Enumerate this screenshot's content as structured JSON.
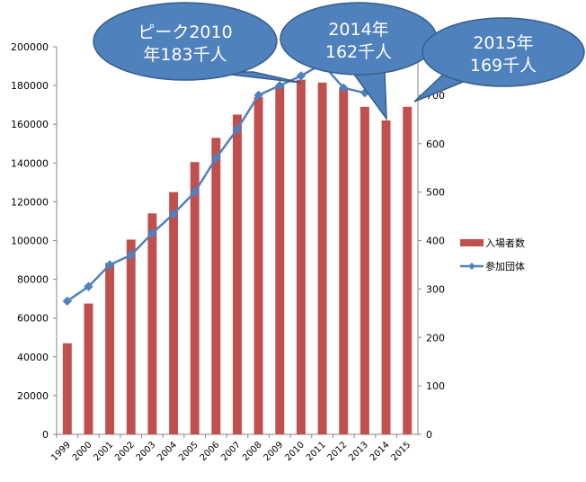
{
  "chart_data": {
    "type": "bar",
    "categories": [
      "1999",
      "2000",
      "2001",
      "2002",
      "2003",
      "2004",
      "2005",
      "2006",
      "2007",
      "2008",
      "2009",
      "2010",
      "2011",
      "2012",
      "2013",
      "2014",
      "2015"
    ],
    "series": [
      {
        "name": "入場者数",
        "kind": "bar",
        "axis": "left",
        "color": "#C0504D",
        "values": [
          47000,
          67500,
          88500,
          100500,
          114000,
          125000,
          140500,
          153000,
          165000,
          174000,
          180000,
          183000,
          181500,
          179000,
          169000,
          162000,
          169000
        ]
      },
      {
        "name": "参加団体",
        "kind": "line",
        "axis": "right",
        "color": "#4F81BD",
        "values": [
          275,
          305,
          350,
          370,
          415,
          455,
          500,
          570,
          630,
          700,
          720,
          740,
          765,
          715,
          705,
          null,
          null
        ]
      }
    ],
    "y_left": {
      "range": [
        0,
        200000
      ],
      "ticks": [
        "0",
        "20000",
        "40000",
        "60000",
        "80000",
        "100000",
        "120000",
        "140000",
        "160000",
        "180000",
        "200000"
      ]
    },
    "y_right": {
      "range": [
        0,
        800
      ],
      "ticks": [
        "0",
        "100",
        "200",
        "300",
        "400",
        "500",
        "600",
        "700"
      ]
    },
    "legend": "right",
    "grid": false,
    "annotations": [
      {
        "id": "peak",
        "lines": [
          "ピーク2010",
          "年183千人"
        ],
        "color": "#4F81BD"
      },
      {
        "id": "y2014",
        "lines": [
          "2014年",
          "162千人"
        ],
        "color": "#4F81BD"
      },
      {
        "id": "y2015",
        "lines": [
          "2015年",
          "169千人"
        ],
        "color": "#4F81BD"
      }
    ]
  }
}
